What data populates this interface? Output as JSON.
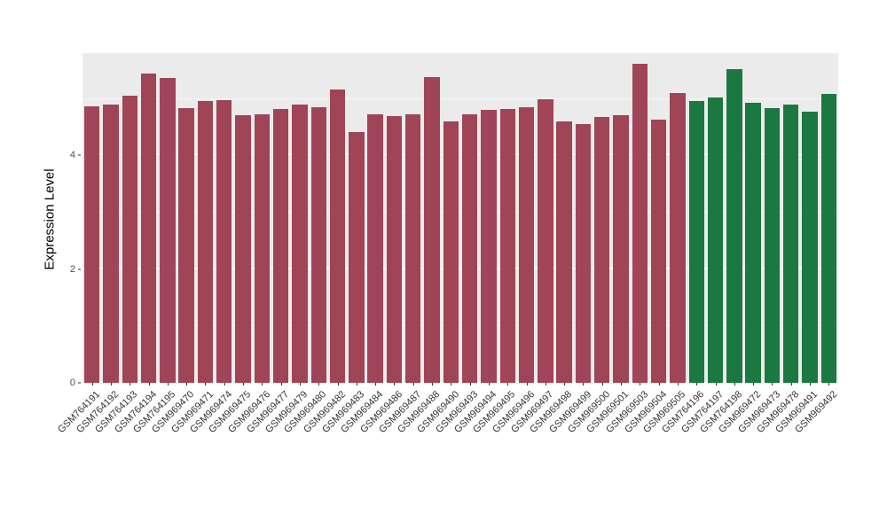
{
  "chart_data": {
    "type": "bar",
    "title": "",
    "xlabel": "",
    "ylabel": "Expression Level",
    "ylim": [
      0,
      5.8
    ],
    "yticks": [
      "0",
      "2",
      "4"
    ],
    "ytick_values": [
      0,
      2,
      4
    ],
    "ytick_minor_values": [
      1,
      3,
      5
    ],
    "panel_background": "#EBEBEB",
    "grid": "major-minor-white",
    "legend_position": "none",
    "group_colors": {
      "group1": "#A04458",
      "group2": "#1B7841"
    },
    "bars": [
      {
        "label": "GSM764191",
        "value": 4.86,
        "group": "group1"
      },
      {
        "label": "GSM764192",
        "value": 4.89,
        "group": "group1"
      },
      {
        "label": "GSM764193",
        "value": 5.05,
        "group": "group1"
      },
      {
        "label": "GSM764194",
        "value": 5.44,
        "group": "group1"
      },
      {
        "label": "GSM764195",
        "value": 5.36,
        "group": "group1"
      },
      {
        "label": "GSM969470",
        "value": 4.83,
        "group": "group1"
      },
      {
        "label": "GSM969471",
        "value": 4.96,
        "group": "group1"
      },
      {
        "label": "GSM969474",
        "value": 4.97,
        "group": "group1"
      },
      {
        "label": "GSM969475",
        "value": 4.71,
        "group": "group1"
      },
      {
        "label": "GSM969476",
        "value": 4.72,
        "group": "group1"
      },
      {
        "label": "GSM969477",
        "value": 4.82,
        "group": "group1"
      },
      {
        "label": "GSM969479",
        "value": 4.89,
        "group": "group1"
      },
      {
        "label": "GSM969480",
        "value": 4.85,
        "group": "group1"
      },
      {
        "label": "GSM969482",
        "value": 5.16,
        "group": "group1"
      },
      {
        "label": "GSM969483",
        "value": 4.41,
        "group": "group1"
      },
      {
        "label": "GSM969484",
        "value": 4.72,
        "group": "group1"
      },
      {
        "label": "GSM969486",
        "value": 4.69,
        "group": "group1"
      },
      {
        "label": "GSM969487",
        "value": 4.72,
        "group": "group1"
      },
      {
        "label": "GSM969488",
        "value": 5.38,
        "group": "group1"
      },
      {
        "label": "GSM969490",
        "value": 4.6,
        "group": "group1"
      },
      {
        "label": "GSM969493",
        "value": 4.72,
        "group": "group1"
      },
      {
        "label": "GSM969494",
        "value": 4.8,
        "group": "group1"
      },
      {
        "label": "GSM969495",
        "value": 4.82,
        "group": "group1"
      },
      {
        "label": "GSM969496",
        "value": 4.85,
        "group": "group1"
      },
      {
        "label": "GSM969497",
        "value": 4.99,
        "group": "group1"
      },
      {
        "label": "GSM969498",
        "value": 4.6,
        "group": "group1"
      },
      {
        "label": "GSM969499",
        "value": 4.55,
        "group": "group1"
      },
      {
        "label": "GSM969500",
        "value": 4.67,
        "group": "group1"
      },
      {
        "label": "GSM969501",
        "value": 4.71,
        "group": "group1"
      },
      {
        "label": "GSM969503",
        "value": 5.62,
        "group": "group1"
      },
      {
        "label": "GSM969504",
        "value": 4.63,
        "group": "group1"
      },
      {
        "label": "GSM969505",
        "value": 5.1,
        "group": "group1"
      },
      {
        "label": "GSM764196",
        "value": 4.96,
        "group": "group2"
      },
      {
        "label": "GSM764197",
        "value": 5.02,
        "group": "group2"
      },
      {
        "label": "GSM764198",
        "value": 5.52,
        "group": "group2"
      },
      {
        "label": "GSM969472",
        "value": 4.92,
        "group": "group2"
      },
      {
        "label": "GSM969473",
        "value": 4.83,
        "group": "group2"
      },
      {
        "label": "GSM969478",
        "value": 4.89,
        "group": "group2"
      },
      {
        "label": "GSM969491",
        "value": 4.77,
        "group": "group2"
      },
      {
        "label": "GSM969492",
        "value": 5.08,
        "group": "group2"
      }
    ]
  }
}
